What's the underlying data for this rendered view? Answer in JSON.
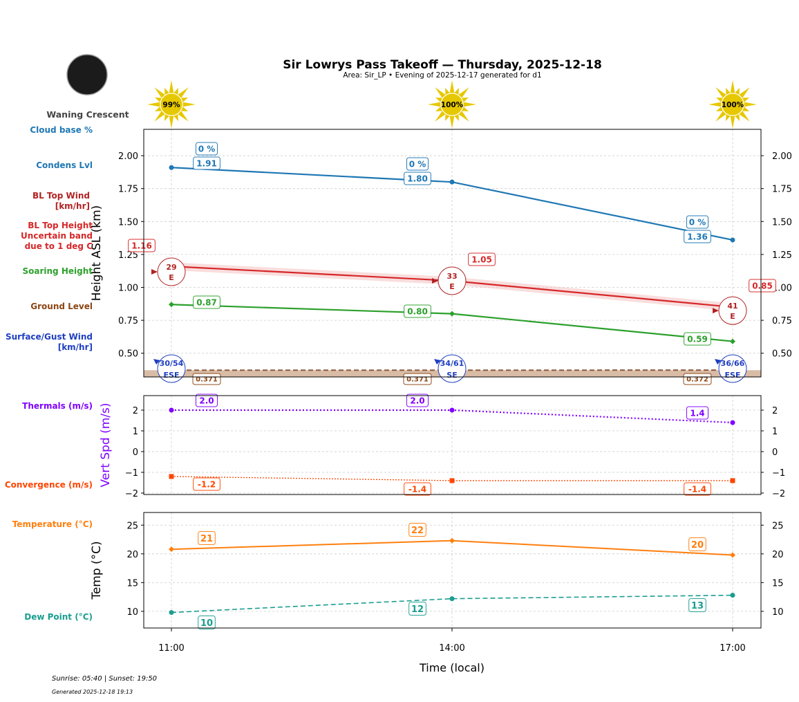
{
  "header": {
    "title": "Sir Lowrys Pass Takeoff — Thursday, 2025-12-18",
    "subtitle": "Area: Sir_LP • Evening of 2025-12-17 generated for d1",
    "moon_phase": "Waning Crescent",
    "sun_percent": [
      "99%",
      "100%",
      "100%"
    ]
  },
  "side_labels": [
    {
      "text": [
        "Cloud base %"
      ],
      "color": "#1f77b4"
    },
    {
      "text": [
        "Condens Lvl"
      ],
      "color": "#1f77b4"
    },
    {
      "text": [
        "BL Top Wind",
        "[km/hr]"
      ],
      "color": "#b22222"
    },
    {
      "text": [
        "BL Top Height",
        "Uncertain band",
        "due to 1 deg C"
      ],
      "color": "#d62728"
    },
    {
      "text": [
        "Soaring Height"
      ],
      "color": "#2ca02c"
    },
    {
      "text": [
        "Ground Level"
      ],
      "color": "#8b4513"
    },
    {
      "text": [
        "Surface/Gust Wind",
        "[km/hr]"
      ],
      "color": "#1f3fbf"
    },
    {
      "text": [
        "Thermals (m/s)"
      ],
      "color": "#7f00ff"
    },
    {
      "text": [
        "Convergence (m/s)"
      ],
      "color": "#ff4500"
    },
    {
      "text": [
        "Temperature (°C)"
      ],
      "color": "#ff7f0e"
    },
    {
      "text": [
        "Dew Point (°C)"
      ],
      "color": "#1a9e8f"
    }
  ],
  "footer": {
    "sun_times": "Sunrise: 05:40 | Sunset: 19:50",
    "generated": "Generated 2025-12-18 19:13"
  },
  "chart_data": [
    {
      "type": "line",
      "ylabel": "Height ASL (km)",
      "x": [
        "11:00",
        "14:00",
        "17:00"
      ],
      "ylim": [
        0.32,
        2.2
      ],
      "yticks": [
        "2.00",
        "1.75",
        "1.50",
        "1.25",
        "1.00",
        "0.75",
        "0.50"
      ],
      "grid": true,
      "series": [
        {
          "name": "Condens Lvl",
          "values": [
            1.91,
            1.8,
            1.36
          ],
          "color": "#1f77b4",
          "labels": [
            "1.91",
            "1.80",
            "1.36"
          ]
        },
        {
          "name": "Cloud base %",
          "values": [
            0,
            0,
            0
          ],
          "color": "#1f77b4",
          "labels": [
            "0 %",
            "0 %",
            "0 %"
          ]
        },
        {
          "name": "BL Top Height",
          "values": [
            1.16,
            1.05,
            0.85
          ],
          "band": 0.03,
          "color": "#d62728",
          "labels": [
            "1.16",
            "1.05",
            "0.85"
          ]
        },
        {
          "name": "BL Top Wind",
          "speed": [
            "29",
            "33",
            "41"
          ],
          "direction": [
            "E",
            "E",
            "E"
          ],
          "color": "#b22222"
        },
        {
          "name": "Soaring Height",
          "values": [
            0.87,
            0.8,
            0.59
          ],
          "color": "#2ca02c",
          "labels": [
            "0.87",
            "0.80",
            "0.59"
          ]
        },
        {
          "name": "Ground Level",
          "values": [
            0.371,
            0.371,
            0.372
          ],
          "color": "#8b4513",
          "labels": [
            "0.371",
            "0.371",
            "0.372"
          ]
        },
        {
          "name": "Surface/Gust Wind",
          "speed": [
            "30/54",
            "34/61",
            "36/66"
          ],
          "direction": [
            "ESE",
            "SE",
            "ESE"
          ],
          "color": "#1f3fbf"
        }
      ]
    },
    {
      "type": "line",
      "ylabel": "Vert Spd (m/s)",
      "x": [
        "11:00",
        "14:00",
        "17:00"
      ],
      "ylim": [
        -2.07,
        2.7
      ],
      "yticks": [
        "2",
        "1",
        "0",
        "−1",
        "−2"
      ],
      "grid": true,
      "series": [
        {
          "name": "Thermals (m/s)",
          "values": [
            2.0,
            2.0,
            1.4
          ],
          "color": "#7f00ff",
          "labels": [
            "2.0",
            "2.0",
            "1.4"
          ]
        },
        {
          "name": "Convergence (m/s)",
          "values": [
            -1.2,
            -1.4,
            -1.4
          ],
          "color": "#ff4500",
          "labels": [
            "-1.2",
            "-1.4",
            "-1.4"
          ]
        }
      ]
    },
    {
      "type": "line",
      "ylabel": "Temp (°C)",
      "xlabel": "Time (local)",
      "x": [
        "11:00",
        "14:00",
        "17:00"
      ],
      "ylim": [
        7.1,
        27.2
      ],
      "yticks": [
        "25",
        "20",
        "15",
        "10"
      ],
      "grid": true,
      "series": [
        {
          "name": "Temperature (°C)",
          "values": [
            20.8,
            22.3,
            19.8
          ],
          "color": "#ff7f0e",
          "labels": [
            "21",
            "22",
            "20"
          ]
        },
        {
          "name": "Dew Point (°C)",
          "values": [
            9.8,
            12.2,
            12.8
          ],
          "color": "#1a9e8f",
          "labels": [
            "10",
            "12",
            "13"
          ]
        }
      ]
    }
  ]
}
